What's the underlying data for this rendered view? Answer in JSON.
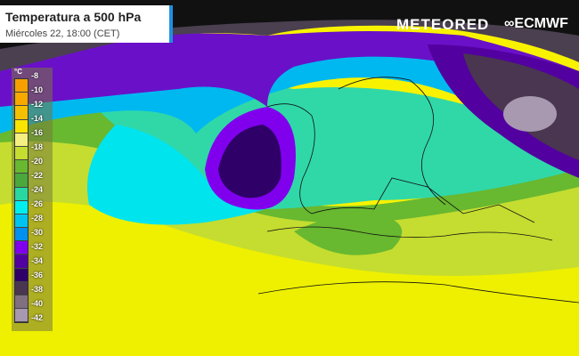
{
  "header": {
    "title": "Temperatura a 500 hPa",
    "subtitle": "Miércoles 22, 18:00 (CET)"
  },
  "logos": {
    "meteored": "METEORED",
    "ecmwf": "ECMWF"
  },
  "legend": {
    "unit": "°C",
    "items": [
      {
        "label": "-8",
        "color": "#f5a000"
      },
      {
        "label": "-10",
        "color": "#f7a900"
      },
      {
        "label": "-12",
        "color": "#f5c000"
      },
      {
        "label": "-14",
        "color": "#f8e400"
      },
      {
        "label": "-16",
        "color": "#f4ef80"
      },
      {
        "label": "-18",
        "color": "#c4dd30"
      },
      {
        "label": "-20",
        "color": "#68b830"
      },
      {
        "label": "-22",
        "color": "#4aa83c"
      },
      {
        "label": "-24",
        "color": "#28d8a0"
      },
      {
        "label": "-26",
        "color": "#00eeee"
      },
      {
        "label": "-28",
        "color": "#00c4f0"
      },
      {
        "label": "-30",
        "color": "#0090f0"
      },
      {
        "label": "-32",
        "color": "#8000ee"
      },
      {
        "label": "-34",
        "color": "#5200a0"
      },
      {
        "label": "-36",
        "color": "#2e0068"
      },
      {
        "label": "-38",
        "color": "#4a3650"
      },
      {
        "label": "-40",
        "color": "#807080"
      },
      {
        "label": "-42",
        "color": "#a898b0"
      }
    ]
  }
}
